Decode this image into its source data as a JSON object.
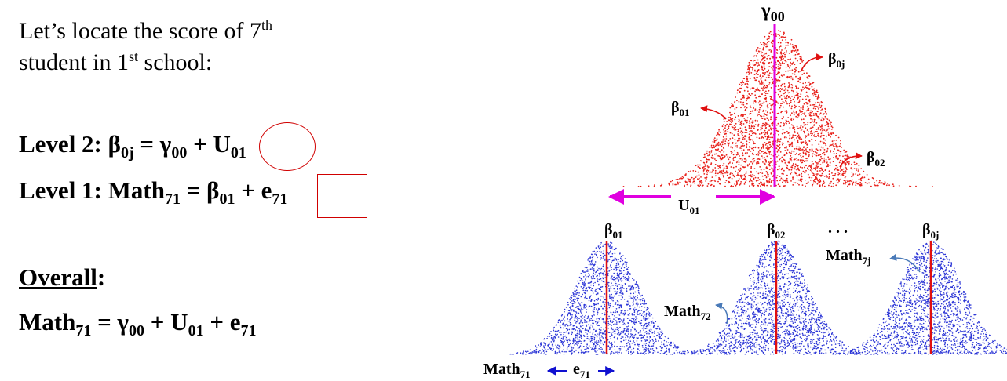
{
  "intro": {
    "line1_prefix": "Let’s locate the score of 7",
    "line1_sup": "th",
    "line2_prefix": "student in 1",
    "line2_sup": "st",
    "line2_suffix": " school:"
  },
  "level2": {
    "prefix": "Level 2: β",
    "beta_sub": "0j",
    "eq_gamma": " = γ",
    "gamma_sub": "00",
    "plus": " + ",
    "u": "U",
    "u_sub": "01"
  },
  "level1": {
    "prefix": "Level 1: Math",
    "math_sub": "71",
    "eq_beta": " = β",
    "beta_sub": "01",
    "plus": " + ",
    "e": "e",
    "e_sub": "71"
  },
  "overall": {
    "heading": "Overall",
    "colon": ":",
    "prefix": "Math",
    "math_sub": "71",
    "eq_gamma": " = γ",
    "gamma_sub": "00",
    "plus_u": " + U",
    "u_sub": "01",
    "plus_e": " + e",
    "e_sub": "71"
  },
  "diagram": {
    "gamma00": {
      "base": "γ",
      "sub": "00"
    },
    "beta0j_top": {
      "base": "β",
      "sub": "0j"
    },
    "beta01_top": {
      "base": "β",
      "sub": "01"
    },
    "beta02_top": {
      "base": "β",
      "sub": "02"
    },
    "u01": {
      "base": "U",
      "sub": "01"
    },
    "beta01_bottom": {
      "base": "β",
      "sub": "01"
    },
    "beta02_bottom": {
      "base": "β",
      "sub": "02"
    },
    "ellipsis": ". . .",
    "beta0j_bottom": {
      "base": "β",
      "sub": "0j"
    },
    "math7j": {
      "base": "Math",
      "sub": "7j"
    },
    "math72": {
      "base": "Math",
      "sub": "72"
    },
    "math71": {
      "base": "Math",
      "sub": "71"
    },
    "e71": {
      "base": "e",
      "sub": "71"
    },
    "colors": {
      "top_dots": "#e8201a",
      "bottom_dots": "#2b35d6",
      "center_line_top": "#e000e0",
      "center_line_bottom": "#e01010",
      "u_arrow": "#e000e0",
      "callout_red": "#e01010",
      "callout_blue": "#4a7ab8",
      "e_arrow": "#1010d0"
    }
  }
}
